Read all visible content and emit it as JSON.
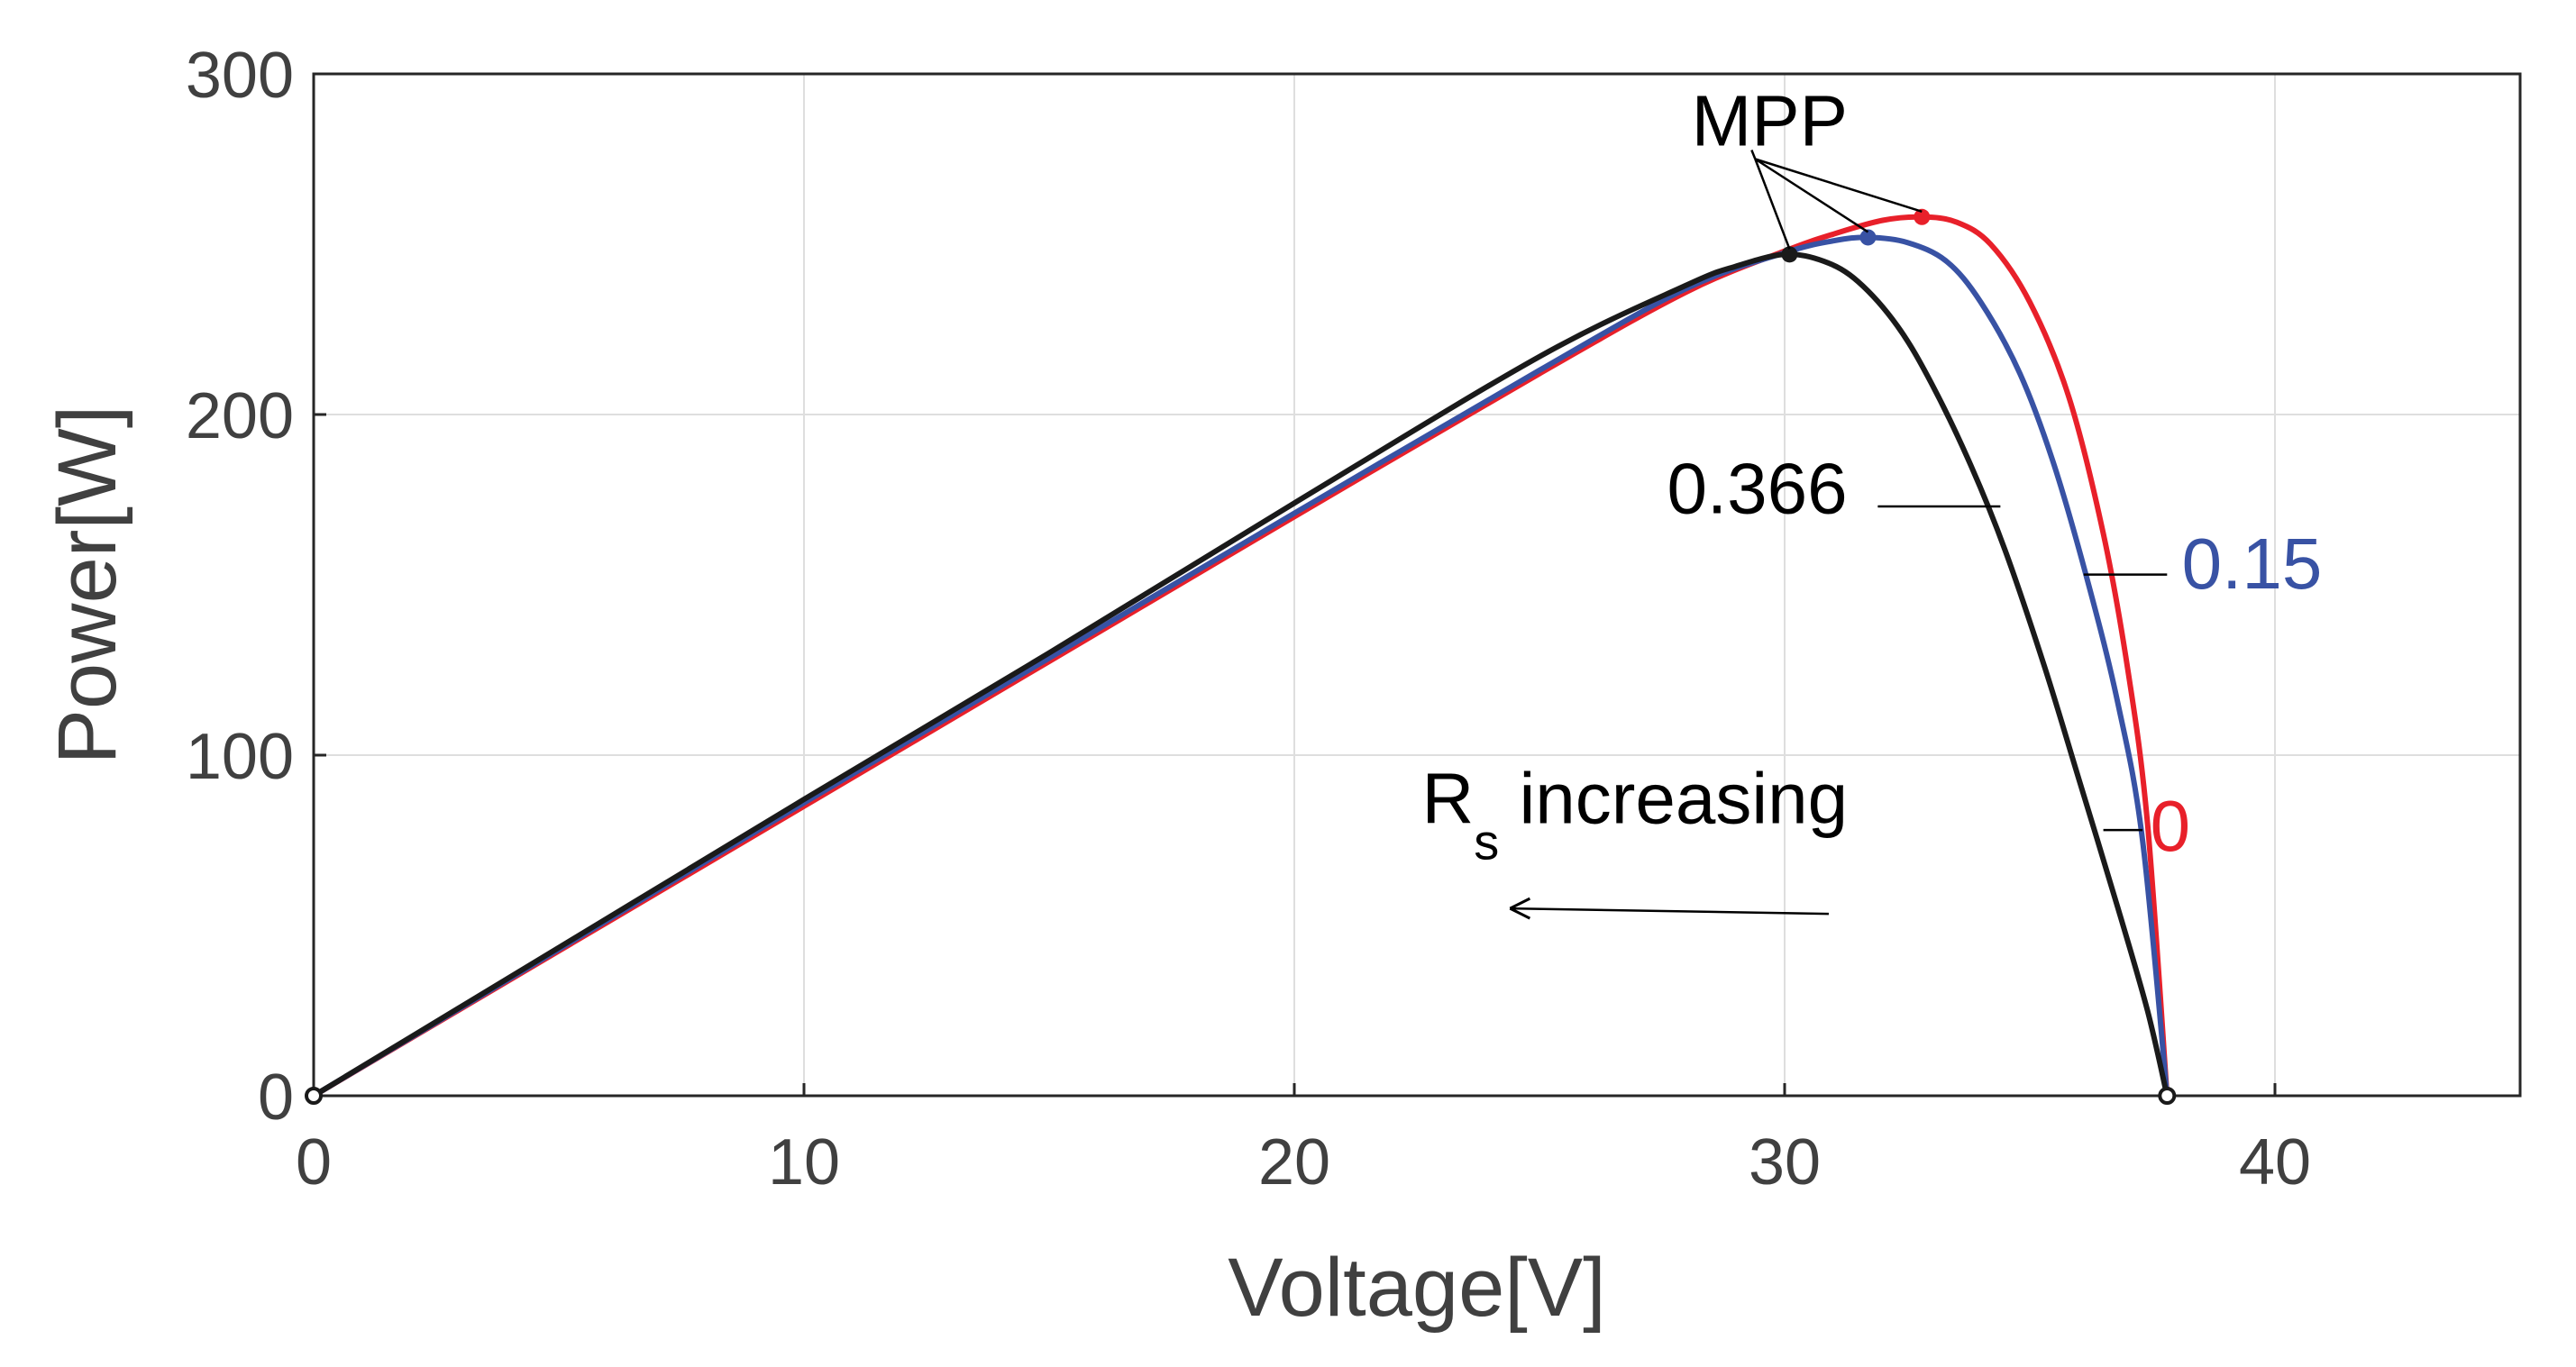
{
  "chart_data": {
    "type": "line",
    "title": "",
    "xlabel": "Voltage[V]",
    "ylabel": "Power[W]",
    "xlim": [
      0,
      45
    ],
    "ylim": [
      0,
      300
    ],
    "xticks": [
      0,
      10,
      20,
      30,
      40
    ],
    "yticks": [
      0,
      100,
      200,
      300
    ],
    "xtick_labels": [
      "0",
      "10",
      "20",
      "30",
      "40"
    ],
    "ytick_labels": [
      "0",
      "100",
      "200",
      "300"
    ],
    "grid": true,
    "series": [
      {
        "name": "0",
        "color": "#e8202a",
        "x": [
          0,
          5,
          10,
          15,
          20,
          25,
          28,
          30,
          31,
          32,
          32.8,
          33.5,
          34.2,
          35,
          35.8,
          36.5,
          37,
          37.4,
          37.8
        ],
        "y": [
          0,
          42.5,
          85,
          127.5,
          170,
          212,
          236,
          248,
          253,
          257,
          258,
          256.5,
          250,
          233,
          205,
          165,
          125,
          80,
          0
        ],
        "mpp": {
          "x": 32.8,
          "y": 258
        }
      },
      {
        "name": "0.15",
        "color": "#3852a4",
        "x": [
          0,
          5,
          10,
          15,
          20,
          25,
          28,
          30,
          31,
          31.7,
          32.5,
          33.3,
          34,
          34.8,
          35.5,
          36.2,
          36.8,
          37.3,
          37.8
        ],
        "y": [
          0,
          43,
          86,
          128.5,
          171,
          213,
          237,
          247.5,
          251,
          252,
          250.5,
          245,
          233,
          212,
          185,
          150,
          115,
          75,
          0
        ],
        "mpp": {
          "x": 31.7,
          "y": 252
        }
      },
      {
        "name": "0.366",
        "color": "#1a1a1a",
        "x": [
          0,
          5,
          10,
          15,
          20,
          25,
          28,
          29,
          30,
          30.8,
          31.5,
          32.3,
          33,
          33.8,
          34.5,
          35.3,
          36,
          36.8,
          37.4,
          37.8
        ],
        "y": [
          0,
          43.5,
          87,
          130,
          174,
          217,
          238,
          243.5,
          247,
          245,
          239,
          226,
          209,
          185,
          160,
          126,
          93,
          55,
          25,
          0
        ],
        "mpp": {
          "x": 30.1,
          "y": 247
        }
      }
    ],
    "annotations": [
      {
        "text": "MPP",
        "x": 28.1,
        "y": 279,
        "color": "#000000"
      },
      {
        "text": "0.366",
        "x": 27.6,
        "y": 171,
        "color": "#000000"
      },
      {
        "text": "0.15",
        "x": 38.1,
        "y": 149,
        "color": "#3852a4"
      },
      {
        "text": "0",
        "x": 37.2,
        "y": 72,
        "color": "#e8202a"
      },
      {
        "text": "R",
        "sub": "s",
        "rest": " increasing",
        "x": 22.6,
        "y": 80,
        "color": "#000000"
      }
    ]
  }
}
